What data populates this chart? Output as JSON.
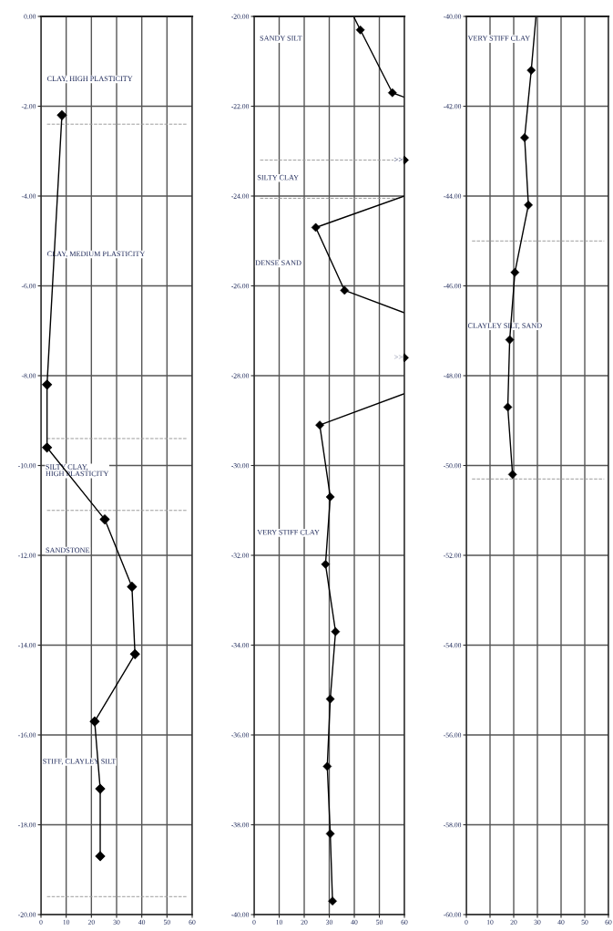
{
  "chart_data": [
    {
      "type": "line",
      "grid": true,
      "xlim": [
        0,
        60
      ],
      "xticks": [
        0,
        10,
        20,
        30,
        40,
        50,
        60
      ],
      "ylim": [
        -20,
        0
      ],
      "yticks": [
        {
          "value": 0,
          "label": "0.00"
        },
        {
          "value": -2,
          "label": "-2.00"
        },
        {
          "value": -4,
          "label": "-4.00"
        },
        {
          "value": -6,
          "label": "-6.00"
        },
        {
          "value": -8,
          "label": "-8.00"
        },
        {
          "value": -10,
          "label": "-10.00"
        },
        {
          "value": -12,
          "label": "-12.00"
        },
        {
          "value": -14,
          "label": "-14.00"
        },
        {
          "value": -16,
          "label": "-16.00"
        },
        {
          "value": -18,
          "label": "-18.00"
        },
        {
          "value": -20,
          "label": "-20.00"
        }
      ],
      "series": [
        {
          "type": "line",
          "color": "#000000",
          "marker": "diamond",
          "x": [
            8.3,
            2.4,
            2.4,
            25.3,
            36.1,
            37.3,
            21.3,
            23.5,
            23.5
          ],
          "values": [
            -2.2,
            -8.2,
            -9.6,
            -11.2,
            -12.7,
            -14.2,
            -15.7,
            -17.2,
            -18.7
          ]
        }
      ],
      "ref_lines": [
        {
          "axis": "y",
          "value": -2.4,
          "color": "#9a9a9a",
          "line_style": "dashed"
        },
        {
          "axis": "y",
          "value": -9.4,
          "color": "#9a9a9a",
          "line_style": "dashed"
        },
        {
          "axis": "y",
          "value": -11.0,
          "color": "#9a9a9a",
          "line_style": "dashed"
        },
        {
          "axis": "y",
          "value": -19.6,
          "color": "#9a9a9a",
          "line_style": "dashed"
        }
      ],
      "annotations": [
        "CLAY, HIGH PLASTICITY",
        "CLAY, MEDIUM PLASTICITY",
        "SILTY CLAY,\nHIGH PLASTICITY",
        "SANDSTONE",
        "STIFF, CLAYLEY SILT"
      ]
    },
    {
      "type": "line",
      "grid": true,
      "xlim": [
        0,
        60
      ],
      "xticks": [
        0,
        10,
        20,
        30,
        40,
        50,
        60
      ],
      "ylim": [
        -40,
        -20
      ],
      "yticks": [
        {
          "value": -20,
          "label": "-20.00"
        },
        {
          "value": -22,
          "label": "-22.00"
        },
        {
          "value": -24,
          "label": "-24.00"
        },
        {
          "value": -26,
          "label": "-26.00"
        },
        {
          "value": -28,
          "label": "-28.00"
        },
        {
          "value": -30,
          "label": "-30.00"
        },
        {
          "value": -32,
          "label": "-32.00"
        },
        {
          "value": -34,
          "label": "-34.00"
        },
        {
          "value": -36,
          "label": "-36.00"
        },
        {
          "value": -38,
          "label": "-38.00"
        },
        {
          "value": -40,
          "label": "-40.00"
        }
      ],
      "series": [
        {
          "type": "line",
          "color": "#000000",
          "marker": "none",
          "x": [
            39.7,
            42.4,
            55.2,
            60,
            null,
            60,
            24.6,
            36.1,
            60,
            null,
            60,
            26.2,
            30.4,
            28.5,
            32.5,
            30.4,
            29.2,
            30.4,
            31.3
          ],
          "values": [
            -20.0,
            -20.3,
            -21.7,
            -21.8,
            null,
            -24.0,
            -24.7,
            -26.1,
            -26.6,
            null,
            -28.4,
            -29.1,
            -30.7,
            -32.2,
            -33.7,
            -35.2,
            -36.7,
            -38.2,
            -39.7
          ]
        },
        {
          "type": "scatter",
          "color": "#000000",
          "marker": "diamond",
          "x": [
            42.4,
            55.2,
            60,
            24.6,
            36.1,
            60,
            26.2,
            30.4,
            28.5,
            32.5,
            30.4,
            29.2,
            30.4,
            31.3
          ],
          "values": [
            -20.3,
            -21.7,
            -23.2,
            -24.7,
            -26.1,
            -27.6,
            -29.1,
            -30.7,
            -32.2,
            -33.7,
            -35.2,
            -36.7,
            -38.2,
            -39.7
          ]
        }
      ],
      "ref_lines": [
        {
          "axis": "y",
          "value": -23.2,
          "color": "#9a9a9a",
          "line_style": "dashed"
        },
        {
          "axis": "y",
          "value": -24.05,
          "color": "#9a9a9a",
          "line_style": "dashed"
        }
      ],
      "annotations": [
        {
          "text": ">>",
          "x": 60,
          "y": -23.2
        },
        {
          "text": ">>",
          "x": 60,
          "y": -27.6
        },
        "SANDY SILT",
        "SILTY CLAY",
        "DENSE SAND",
        "VERY STIFF CLAY"
      ]
    },
    {
      "type": "line",
      "grid": true,
      "xlim": [
        0,
        60
      ],
      "xticks": [
        0,
        10,
        20,
        30,
        40,
        50,
        60
      ],
      "ylim": [
        -60,
        -40
      ],
      "yticks": [
        {
          "value": -40,
          "label": "-40.00"
        },
        {
          "value": -42,
          "label": "-42.00"
        },
        {
          "value": -44,
          "label": "-44.00"
        },
        {
          "value": -46,
          "label": "-46.00"
        },
        {
          "value": -48,
          "label": "-48.00"
        },
        {
          "value": -50,
          "label": "-50.00"
        },
        {
          "value": -52,
          "label": "-52.00"
        },
        {
          "value": -54,
          "label": "-54.00"
        },
        {
          "value": -56,
          "label": "-56.00"
        },
        {
          "value": -58,
          "label": "-58.00"
        },
        {
          "value": -60,
          "label": "-60.00"
        }
      ],
      "series": [
        {
          "type": "line",
          "color": "#000000",
          "marker": "none",
          "x": [
            29.4,
            27.4,
            24.6,
            26.2,
            20.5,
            18.3,
            17.5,
            19.5
          ],
          "values": [
            -40.0,
            -41.2,
            -42.7,
            -44.2,
            -45.7,
            -47.2,
            -48.7,
            -50.2
          ]
        },
        {
          "type": "scatter",
          "color": "#000000",
          "marker": "diamond",
          "x": [
            27.4,
            24.6,
            26.2,
            20.5,
            18.3,
            17.5,
            19.5
          ],
          "values": [
            -41.2,
            -42.7,
            -44.2,
            -45.7,
            -47.2,
            -48.7,
            -50.2
          ]
        }
      ],
      "ref_lines": [
        {
          "axis": "y",
          "value": -45.0,
          "color": "#9a9a9a",
          "line_style": "dashed"
        },
        {
          "axis": "y",
          "value": -50.3,
          "color": "#9a9a9a",
          "line_style": "dashed"
        }
      ],
      "annotations": [
        "VERY STIFF CLAY",
        "CLAYLEY SILT, SAND"
      ]
    }
  ]
}
